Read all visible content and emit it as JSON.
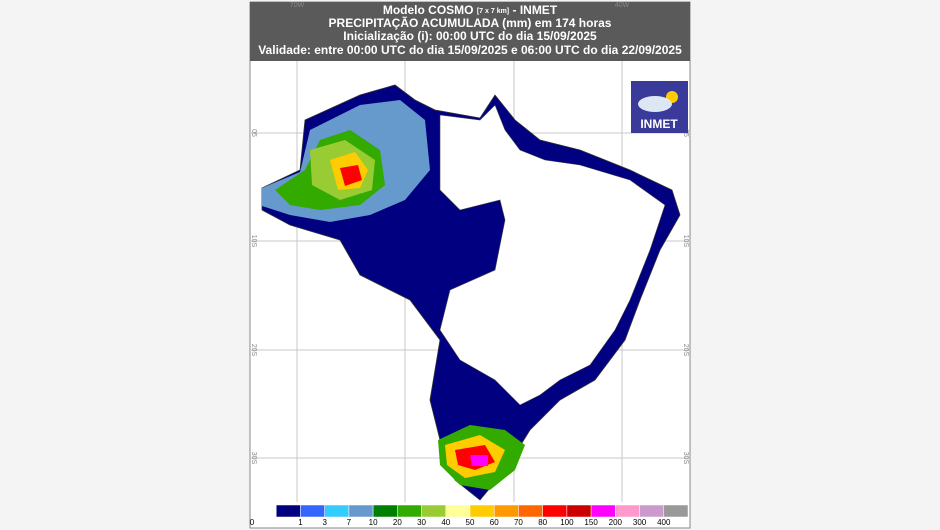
{
  "header": {
    "model": "Modelo COSMO",
    "resolution": "[7 x 7 km]",
    "source": "- INMET",
    "line2": "PRECIPITAÇÃO ACUMULADA (mm) em 174 horas",
    "line3": "Inicialização (i): 00:00 UTC do dia 15/09/2025",
    "line4": "Validade: entre 00:00 UTC do dia 15/09/2025 e 06:00 UTC do dia 22/09/2025"
  },
  "map": {
    "lon_labels": [
      "70W",
      "40W"
    ],
    "lat_labels": [
      "05",
      "10S",
      "20S",
      "30S"
    ]
  },
  "logo": {
    "label": "INMET"
  },
  "legend": {
    "values": [
      0,
      1,
      3,
      7,
      10,
      20,
      30,
      40,
      50,
      60,
      70,
      80,
      100,
      150,
      200,
      300,
      400
    ],
    "colors": [
      "#ffffff",
      "#000080",
      "#3366ff",
      "#33ccff",
      "#6699cc",
      "#008000",
      "#33aa00",
      "#99cc33",
      "#ffff99",
      "#ffcc00",
      "#ff9900",
      "#ff6600",
      "#ff0000",
      "#cc0000",
      "#ff00ff",
      "#ff99cc",
      "#cc99cc",
      "#999999"
    ]
  }
}
